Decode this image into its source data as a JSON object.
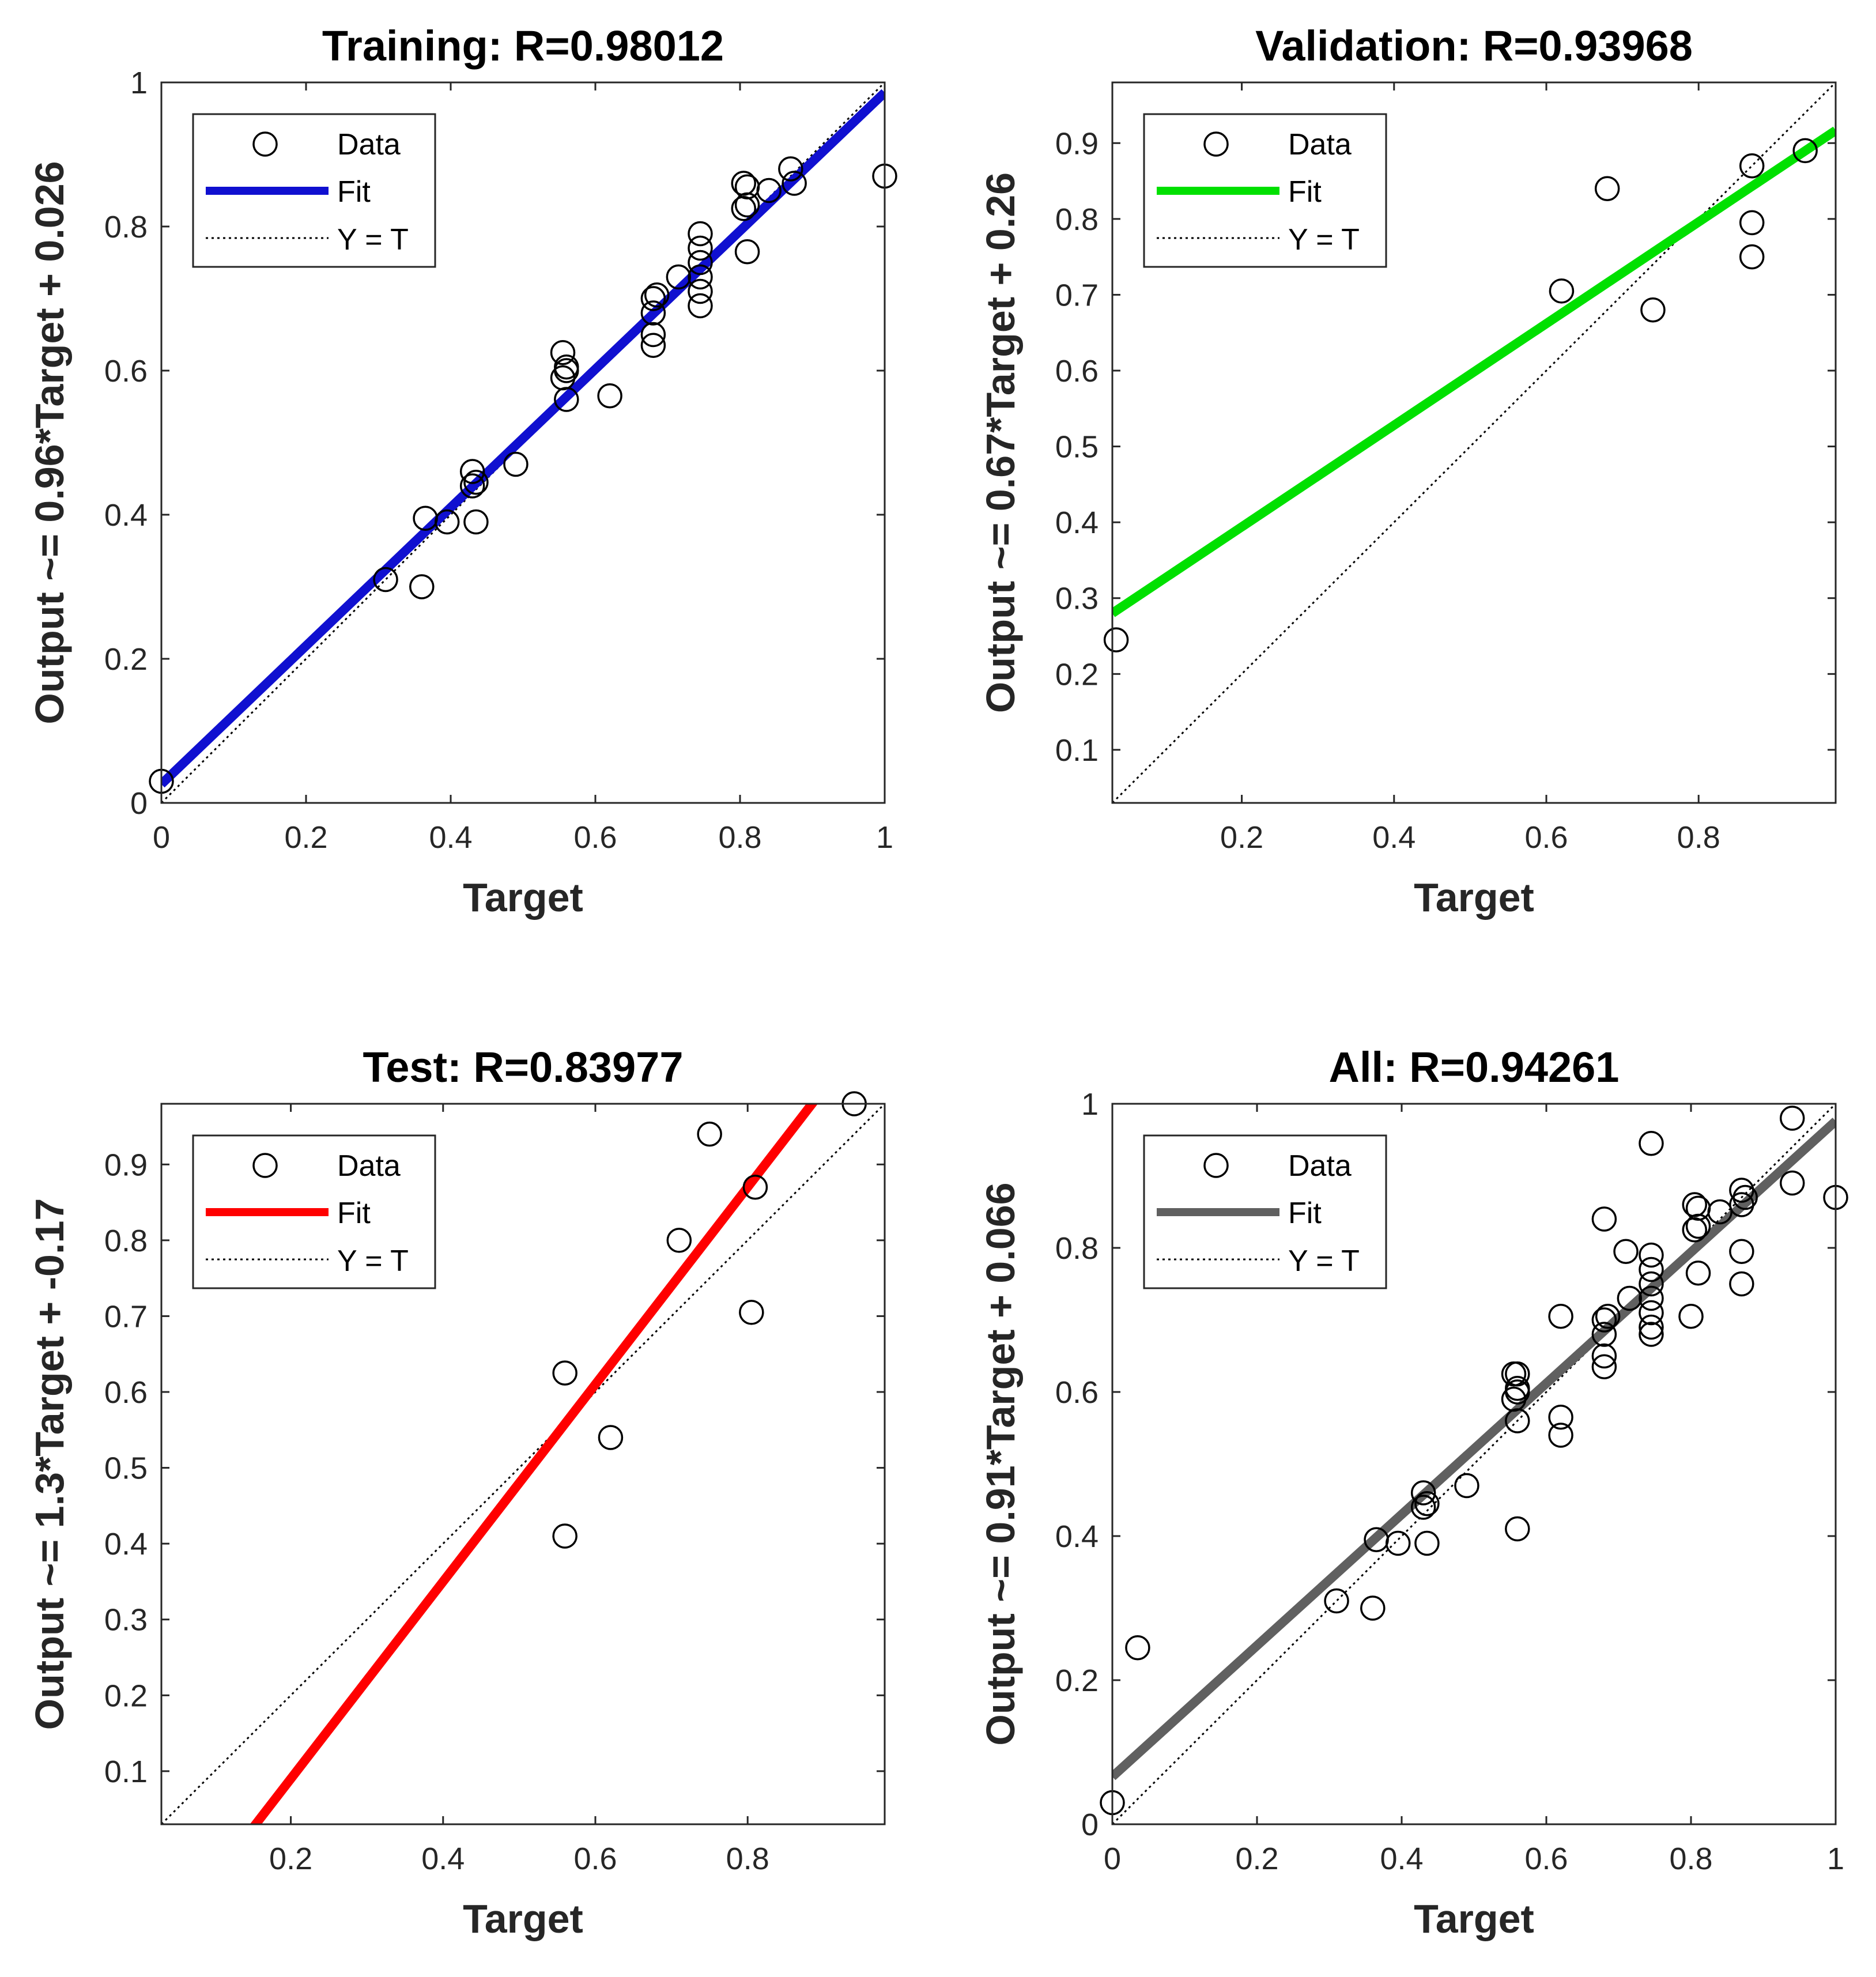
{
  "chart_data": [
    {
      "type": "scatter",
      "title": "Training: R=0.98012",
      "xlabel": "Target",
      "ylabel": "Output ~= 0.96*Target + 0.026",
      "xlim": [
        0,
        1
      ],
      "ylim": [
        0,
        1
      ],
      "xticks": [
        0,
        0.2,
        0.4,
        0.6,
        0.8,
        1
      ],
      "xtick_labels": [
        "0",
        "0.2",
        "0.4",
        "0.6",
        "0.8",
        "1"
      ],
      "yticks": [
        0,
        0.2,
        0.4,
        0.6,
        0.8,
        1
      ],
      "ytick_labels": [
        "0",
        "0.2",
        "0.4",
        "0.6",
        "0.8",
        "1"
      ],
      "fit": {
        "slope": 0.96,
        "intercept": 0.026,
        "x_range": [
          0,
          1
        ],
        "color": "#1010d0"
      },
      "legend": {
        "position": "top-left",
        "entries": [
          "Data",
          "Fit",
          "Y = T"
        ]
      },
      "points": {
        "x": [
          0.0,
          0.31,
          0.36,
          0.365,
          0.395,
          0.43,
          0.43,
          0.435,
          0.435,
          0.49,
          0.555,
          0.555,
          0.56,
          0.56,
          0.56,
          0.62,
          0.68,
          0.68,
          0.68,
          0.68,
          0.685,
          0.715,
          0.745,
          0.745,
          0.745,
          0.745,
          0.745,
          0.745,
          0.805,
          0.805,
          0.81,
          0.81,
          0.81,
          0.84,
          0.87,
          0.875,
          1.0
        ],
        "y": [
          0.03,
          0.31,
          0.3,
          0.395,
          0.39,
          0.46,
          0.44,
          0.445,
          0.39,
          0.47,
          0.625,
          0.59,
          0.605,
          0.6,
          0.56,
          0.565,
          0.7,
          0.68,
          0.65,
          0.635,
          0.705,
          0.73,
          0.79,
          0.77,
          0.75,
          0.73,
          0.71,
          0.69,
          0.86,
          0.825,
          0.765,
          0.855,
          0.83,
          0.85,
          0.88,
          0.86,
          0.87
        ]
      }
    },
    {
      "type": "scatter",
      "title": "Validation: R=0.93968",
      "xlabel": "Target",
      "ylabel": "Output ~= 0.67*Target + 0.26",
      "xlim": [
        0.03,
        0.98
      ],
      "ylim": [
        0.03,
        0.98
      ],
      "xticks": [
        0.2,
        0.4,
        0.6,
        0.8
      ],
      "xtick_labels": [
        "0.2",
        "0.4",
        "0.6",
        "0.8"
      ],
      "yticks": [
        0.1,
        0.2,
        0.3,
        0.4,
        0.5,
        0.6,
        0.7,
        0.8,
        0.9
      ],
      "ytick_labels": [
        "0.1",
        "0.2",
        "0.3",
        "0.4",
        "0.5",
        "0.6",
        "0.7",
        "0.8",
        "0.9"
      ],
      "fit": {
        "slope": 0.67,
        "intercept": 0.26,
        "x_range": [
          0.03,
          0.98
        ],
        "color": "#00e000"
      },
      "legend": {
        "position": "top-left",
        "entries": [
          "Data",
          "Fit",
          "Y = T"
        ]
      },
      "points": {
        "x": [
          0.035,
          0.62,
          0.68,
          0.74,
          0.87,
          0.87,
          0.87,
          0.94
        ],
        "y": [
          0.245,
          0.705,
          0.84,
          0.68,
          0.87,
          0.795,
          0.75,
          0.89
        ]
      }
    },
    {
      "type": "scatter",
      "title": "Test: R=0.83977",
      "xlabel": "Target",
      "ylabel": "Output ~= 1.3*Target + -0.17",
      "xlim": [
        0.03,
        0.98
      ],
      "ylim": [
        0.03,
        0.98
      ],
      "xticks": [
        0.2,
        0.4,
        0.6,
        0.8
      ],
      "xtick_labels": [
        "0.2",
        "0.4",
        "0.6",
        "0.8"
      ],
      "yticks": [
        0.1,
        0.2,
        0.3,
        0.4,
        0.5,
        0.6,
        0.7,
        0.8,
        0.9
      ],
      "ytick_labels": [
        "0.1",
        "0.2",
        "0.3",
        "0.4",
        "0.5",
        "0.6",
        "0.7",
        "0.8",
        "0.9"
      ],
      "fit": {
        "slope": 1.3,
        "intercept": -0.17,
        "x_range": [
          0.03,
          0.98
        ],
        "color": "#ff0000"
      },
      "legend": {
        "position": "top-left",
        "entries": [
          "Data",
          "Fit",
          "Y = T"
        ]
      },
      "points": {
        "x": [
          0.56,
          0.56,
          0.62,
          0.71,
          0.75,
          0.805,
          0.81,
          0.94
        ],
        "y": [
          0.625,
          0.41,
          0.54,
          0.8,
          0.94,
          0.705,
          0.87,
          0.98
        ]
      }
    },
    {
      "type": "scatter",
      "title": "All: R=0.94261",
      "xlabel": "Target",
      "ylabel": "Output ~= 0.91*Target + 0.066",
      "xlim": [
        0,
        1
      ],
      "ylim": [
        0,
        1
      ],
      "xticks": [
        0,
        0.2,
        0.4,
        0.6,
        0.8,
        1
      ],
      "xtick_labels": [
        "0",
        "0.2",
        "0.4",
        "0.6",
        "0.8",
        "1"
      ],
      "yticks": [
        0,
        0.2,
        0.4,
        0.6,
        0.8,
        1
      ],
      "ytick_labels": [
        "0",
        "0.2",
        "0.4",
        "0.6",
        "0.8",
        "1"
      ],
      "fit": {
        "slope": 0.91,
        "intercept": 0.066,
        "x_range": [
          0,
          1
        ],
        "color": "#606060"
      },
      "legend": {
        "position": "top-left",
        "entries": [
          "Data",
          "Fit",
          "Y = T"
        ]
      },
      "points": {
        "x": [
          0.0,
          0.035,
          0.31,
          0.36,
          0.365,
          0.395,
          0.43,
          0.43,
          0.435,
          0.435,
          0.49,
          0.555,
          0.555,
          0.56,
          0.56,
          0.56,
          0.56,
          0.56,
          0.62,
          0.62,
          0.62,
          0.68,
          0.68,
          0.68,
          0.68,
          0.68,
          0.685,
          0.71,
          0.715,
          0.745,
          0.745,
          0.745,
          0.745,
          0.745,
          0.745,
          0.745,
          0.745,
          0.8,
          0.805,
          0.805,
          0.81,
          0.81,
          0.81,
          0.84,
          0.87,
          0.87,
          0.87,
          0.87,
          0.875,
          0.94,
          0.94,
          1.0
        ],
        "y": [
          0.03,
          0.245,
          0.31,
          0.3,
          0.395,
          0.39,
          0.46,
          0.44,
          0.445,
          0.39,
          0.47,
          0.625,
          0.59,
          0.625,
          0.605,
          0.6,
          0.56,
          0.41,
          0.705,
          0.565,
          0.54,
          0.84,
          0.7,
          0.68,
          0.65,
          0.635,
          0.705,
          0.795,
          0.73,
          0.945,
          0.79,
          0.77,
          0.75,
          0.73,
          0.71,
          0.69,
          0.68,
          0.705,
          0.86,
          0.825,
          0.765,
          0.855,
          0.83,
          0.85,
          0.88,
          0.86,
          0.795,
          0.75,
          0.87,
          0.98,
          0.89,
          0.87
        ]
      }
    }
  ]
}
